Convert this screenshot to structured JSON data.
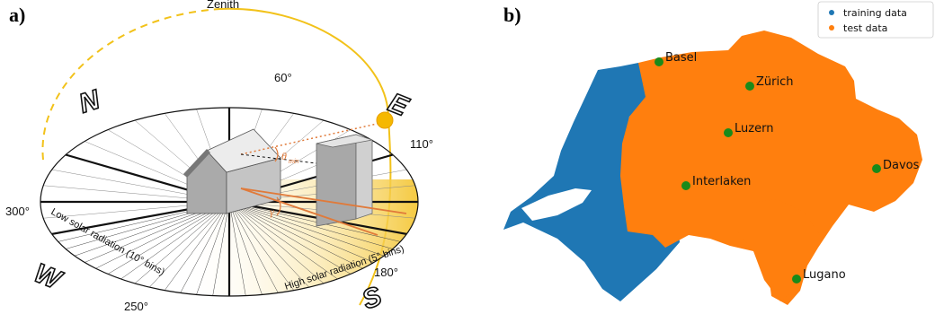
{
  "panel_a": {
    "label": "a)",
    "zenith_label": "Zenith",
    "degree_labels": {
      "d60": "60°",
      "d110": "110°",
      "d180": "180°",
      "d250": "250°",
      "d300": "300°"
    },
    "compass": {
      "north": "N",
      "east": "E",
      "south": "S",
      "west": "W"
    },
    "low_band": "Low solar radiation (10° bins)",
    "high_band": "High solar radiation (5° bins)",
    "theta_label": "θ",
    "theta_sub": "min",
    "gamma_label": "γ",
    "colors": {
      "sun_path": "#f2c21a",
      "accent": "#e07a3a",
      "gradient": "#f4c530"
    }
  },
  "panel_b": {
    "label": "b)",
    "legend": [
      {
        "label": "training data",
        "color": "#1f77b4"
      },
      {
        "label": "test data",
        "color": "#ff7f0e"
      }
    ],
    "cities": [
      {
        "name": "Basel"
      },
      {
        "name": "Zürich"
      },
      {
        "name": "Luzern"
      },
      {
        "name": "Davos"
      },
      {
        "name": "Interlaken"
      },
      {
        "name": "Lugano"
      }
    ],
    "city_marker_color": "#1a8a1a"
  }
}
